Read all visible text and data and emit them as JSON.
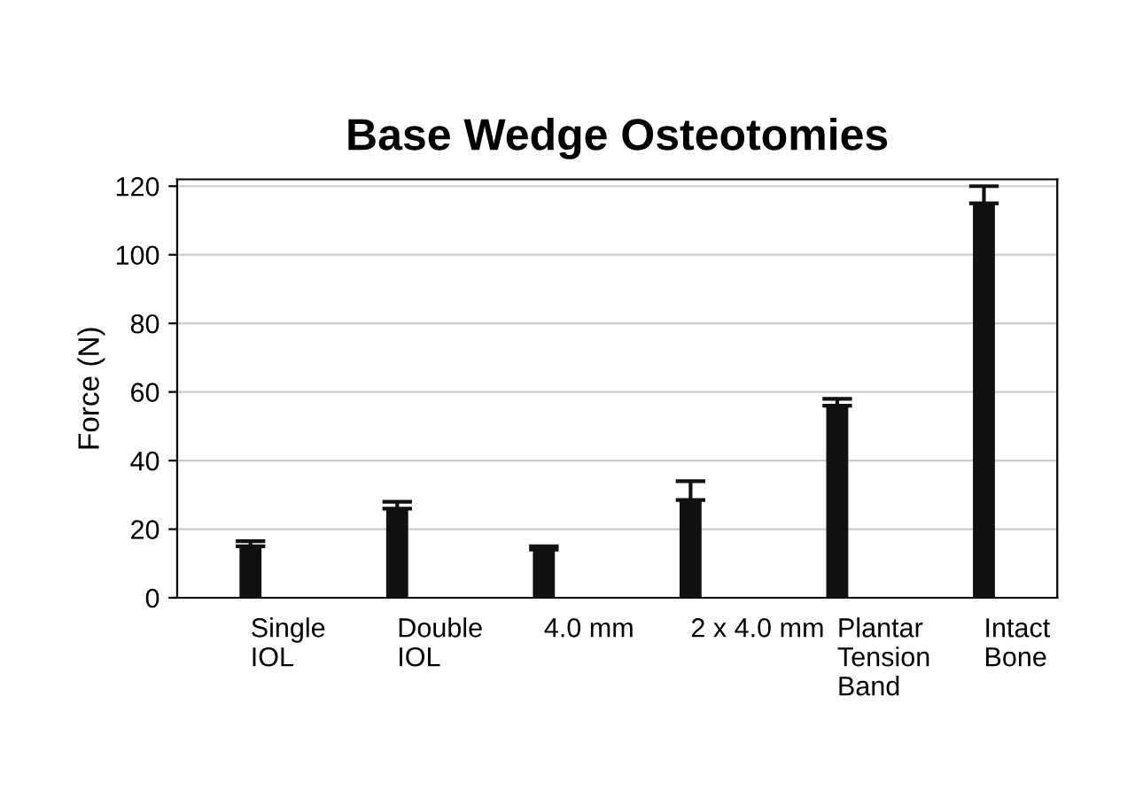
{
  "chart_data": {
    "type": "bar",
    "title": "Base Wedge Osteotomies",
    "ylabel": "Force (N)",
    "categories": [
      "Single\nIOL",
      "Double\nIOL",
      "4.0 mm",
      "2 x 4.0 mm",
      "Plantar\nTension\nBand",
      "Intact\nBone"
    ],
    "values": [
      15,
      26,
      14,
      28.5,
      56,
      115
    ],
    "errors": [
      [
        15,
        16.5
      ],
      [
        26,
        28
      ],
      [
        14,
        15
      ],
      [
        28.5,
        34
      ],
      [
        56,
        58
      ],
      [
        115,
        120
      ]
    ],
    "color": "#111111",
    "ylim": [
      0,
      122
    ],
    "yticks": [
      0,
      20,
      40,
      60,
      80,
      100,
      120
    ],
    "grid": "y"
  }
}
